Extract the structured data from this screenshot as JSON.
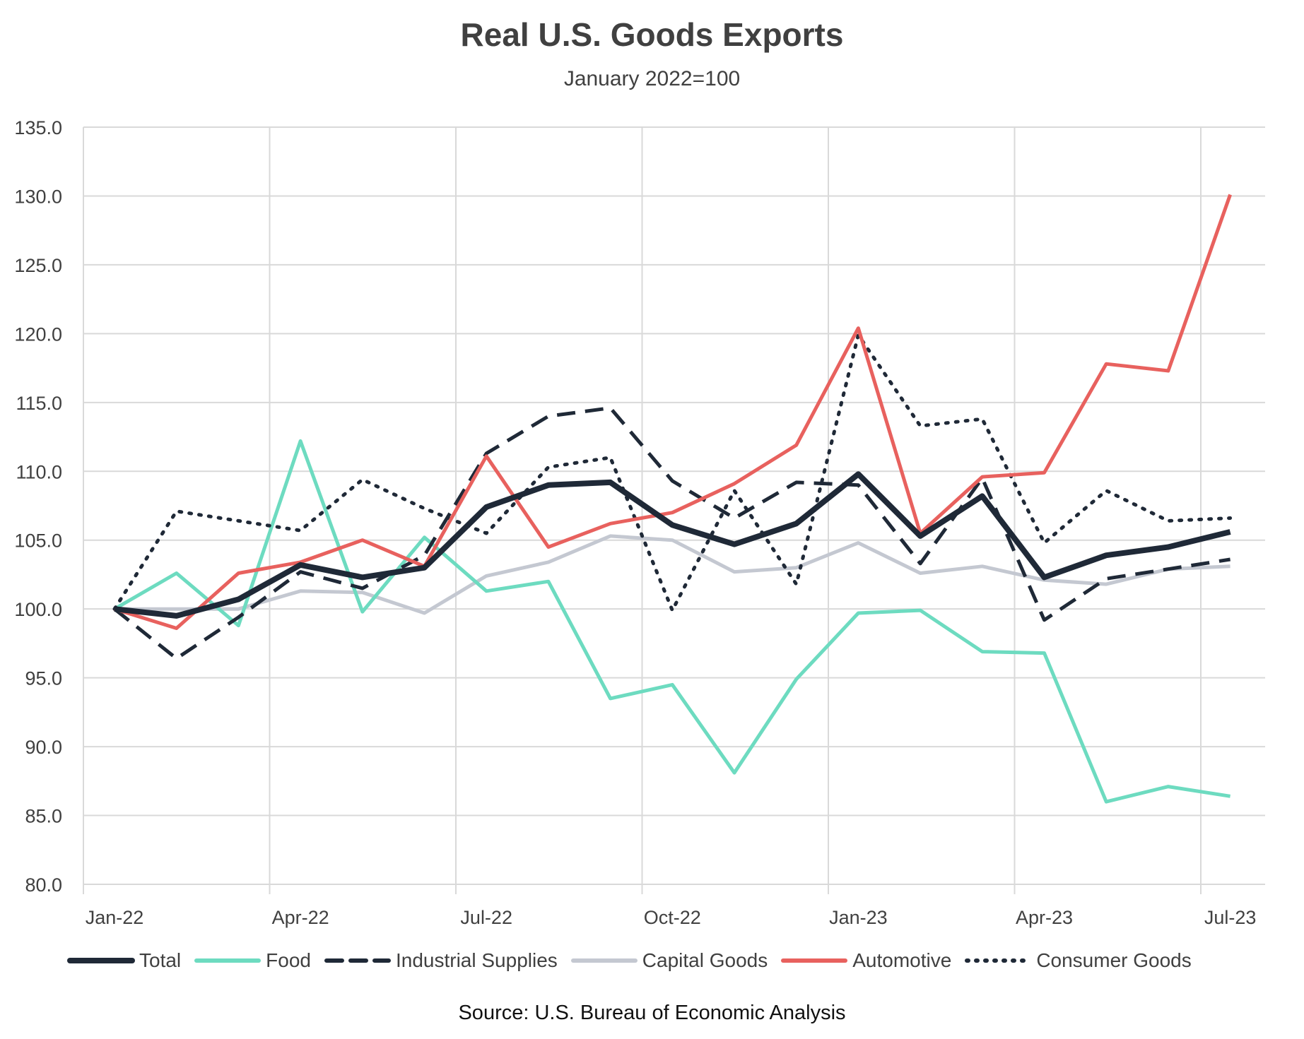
{
  "chart_data": {
    "type": "line",
    "title": "Real U.S. Goods Exports",
    "subtitle": "January 2022=100",
    "xlabel": "",
    "ylabel": "",
    "categories": [
      "Jan-22",
      "Feb-22",
      "Mar-22",
      "Apr-22",
      "May-22",
      "Jun-22",
      "Jul-22",
      "Aug-22",
      "Sep-22",
      "Oct-22",
      "Nov-22",
      "Dec-22",
      "Jan-23",
      "Feb-23",
      "Mar-23",
      "Apr-23",
      "May-23",
      "Jun-23",
      "Jul-23"
    ],
    "x_tick_labels": [
      "Jan-22",
      "Apr-22",
      "Jul-22",
      "Oct-22",
      "Jan-23",
      "Apr-23",
      "Jul-23"
    ],
    "y_tick_labels": [
      "80.0",
      "85.0",
      "90.0",
      "95.0",
      "100.0",
      "105.0",
      "110.0",
      "115.0",
      "120.0",
      "125.0",
      "130.0",
      "135.0"
    ],
    "ylim": [
      80,
      135
    ],
    "ystep": 5,
    "grid": true,
    "legend_position": "bottom",
    "series": [
      {
        "name": "Total",
        "color": "#1f2937",
        "style": "solid",
        "width": "thick",
        "values": [
          100.0,
          99.5,
          100.7,
          103.2,
          102.3,
          103.0,
          107.4,
          109.0,
          109.2,
          106.1,
          104.7,
          106.2,
          109.8,
          105.3,
          108.2,
          102.3,
          103.9,
          104.5,
          105.6
        ]
      },
      {
        "name": "Food",
        "color": "#6ddbc0",
        "style": "solid",
        "width": "normal",
        "values": [
          100.0,
          102.6,
          98.8,
          112.2,
          99.8,
          105.2,
          101.3,
          102.0,
          93.5,
          94.5,
          88.1,
          94.9,
          99.7,
          99.9,
          96.9,
          96.8,
          86.0,
          87.1,
          86.4
        ]
      },
      {
        "name": "Industrial Supplies",
        "color": "#1f2937",
        "style": "dashed",
        "width": "normal",
        "values": [
          100.0,
          96.4,
          99.4,
          102.7,
          101.5,
          103.9,
          111.3,
          114.0,
          114.6,
          109.3,
          106.6,
          109.2,
          109.0,
          103.3,
          109.5,
          99.2,
          102.2,
          102.9,
          103.6
        ]
      },
      {
        "name": "Capital Goods",
        "color": "#c4c8d1",
        "style": "solid",
        "width": "normal",
        "values": [
          100.0,
          100.0,
          100.0,
          101.3,
          101.2,
          99.7,
          102.4,
          103.4,
          105.3,
          105.0,
          102.7,
          103.0,
          104.8,
          102.6,
          103.1,
          102.1,
          101.8,
          102.9,
          103.1
        ]
      },
      {
        "name": "Automotive",
        "color": "#e8615e",
        "style": "solid",
        "width": "normal",
        "values": [
          100.0,
          98.6,
          102.6,
          103.4,
          105.0,
          103.1,
          111.1,
          104.5,
          106.2,
          107.0,
          109.1,
          111.9,
          120.4,
          105.5,
          109.6,
          109.9,
          117.8,
          117.3,
          130.1
        ]
      },
      {
        "name": "Consumer Goods",
        "color": "#1f2937",
        "style": "dotted",
        "width": "normal",
        "values": [
          100.0,
          107.1,
          106.4,
          105.7,
          109.4,
          107.3,
          105.5,
          110.3,
          111.0,
          99.9,
          108.6,
          101.8,
          119.9,
          113.3,
          113.8,
          104.8,
          108.6,
          106.4,
          106.6
        ]
      }
    ]
  },
  "source": "Source: U.S. Bureau of Economic Analysis"
}
